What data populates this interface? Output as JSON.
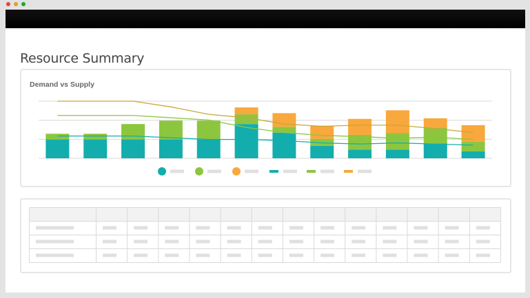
{
  "window": {
    "controls": [
      {
        "name": "close",
        "color": "#e0443e"
      },
      {
        "name": "minimize",
        "color": "#dea123"
      },
      {
        "name": "maximize",
        "color": "#1aab29"
      }
    ]
  },
  "page": {
    "title": "Resource Summary"
  },
  "chart_data": {
    "type": "bar",
    "title": "Demand vs Supply",
    "xlabel": "",
    "ylabel": "",
    "ylim": [
      0,
      100
    ],
    "grid": true,
    "categories": [
      "",
      "",
      "",
      "",
      "",
      "",
      "",
      "",
      "",
      "",
      "",
      ""
    ],
    "series": [
      {
        "kind": "stacked-bar",
        "color": "#13adae",
        "values": [
          33,
          33,
          33,
          33,
          33,
          60,
          45,
          22,
          15,
          15,
          26,
          12
        ]
      },
      {
        "kind": "stacked-bar",
        "color": "#8cc63f",
        "values": [
          10,
          10,
          27,
          33,
          33,
          17,
          10,
          12,
          26,
          29,
          27,
          17
        ]
      },
      {
        "kind": "stacked-bar",
        "color": "#f8a83c",
        "values": [
          0,
          0,
          0,
          0,
          0,
          12,
          24,
          23,
          28,
          40,
          17,
          29
        ]
      },
      {
        "kind": "line",
        "color": "#c8a838",
        "values": [
          100,
          100,
          100,
          90,
          77,
          71,
          60,
          56,
          58,
          58,
          52,
          45
        ]
      },
      {
        "kind": "line",
        "color": "#8cc63f",
        "values": [
          75,
          75,
          75,
          71,
          67,
          54,
          45,
          40,
          38,
          35,
          37,
          33
        ]
      },
      {
        "kind": "line",
        "color": "#13adae",
        "values": [
          39,
          39,
          39,
          36,
          33,
          33,
          31,
          27,
          25,
          27,
          25,
          23
        ]
      }
    ],
    "legend": {
      "placement": "bottom-center",
      "items": [
        {
          "marker": "circle",
          "color": "#13adae"
        },
        {
          "marker": "circle",
          "color": "#8cc63f"
        },
        {
          "marker": "circle",
          "color": "#f8a83c"
        },
        {
          "marker": "line",
          "color": "#13adae"
        },
        {
          "marker": "line",
          "color": "#8cc63f"
        },
        {
          "marker": "line",
          "color": "#f8a83c"
        }
      ]
    }
  },
  "table": {
    "columns": 14,
    "rows": 3,
    "placeholder_color": "#e0e0e0",
    "grid_color": "#d9d9d9",
    "header_color": "#f2f2f2"
  }
}
